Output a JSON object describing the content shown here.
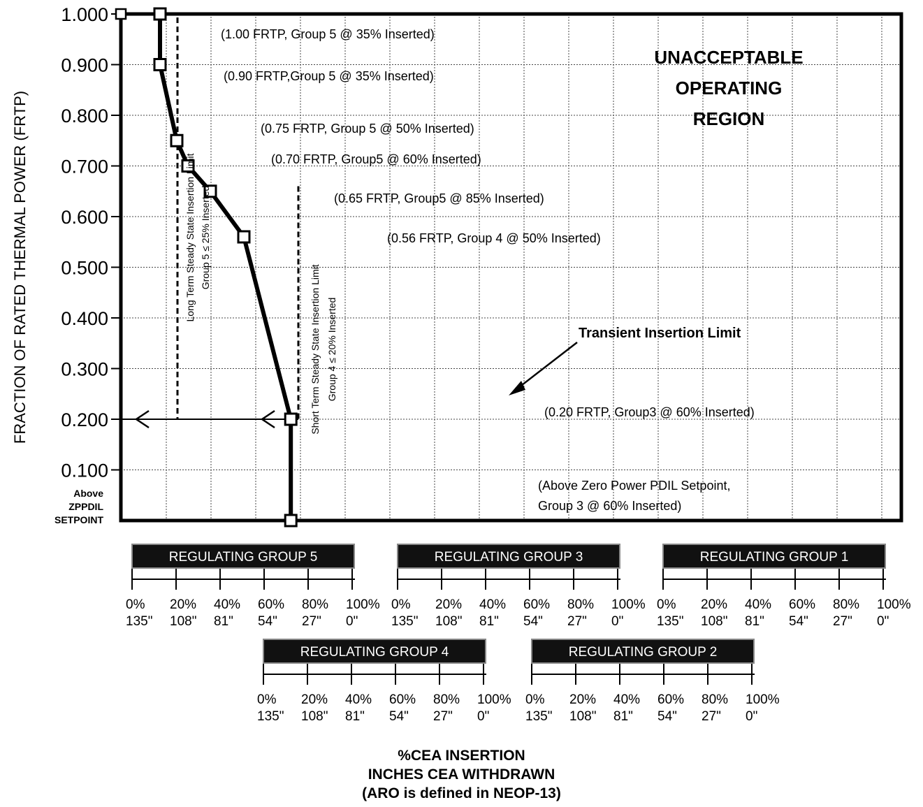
{
  "chart_data": {
    "type": "line",
    "ylabel": "FRACTION OF RATED THERMAL POWER (FRTP)",
    "ylim": [
      0,
      1.0
    ],
    "yticks": [
      "1.000",
      "0.900",
      "0.800",
      "0.700",
      "0.600",
      "0.500",
      "0.400",
      "0.300",
      "0.200",
      "0.100"
    ],
    "ytick_values": [
      1.0,
      0.9,
      0.8,
      0.7,
      0.6,
      0.5,
      0.4,
      0.3,
      0.2,
      0.1
    ],
    "y_bottom_label": [
      "Above",
      "ZPPDIL",
      "SETPOINT"
    ],
    "xlim": [
      0,
      300
    ],
    "x_unit": "% insertion, Regulating Groups 5-1 overlapped",
    "series": [
      {
        "name": "Transient Insertion Limit",
        "x": [
          17.5,
          17.5,
          25,
          30,
          40,
          55,
          76,
          76
        ],
        "y": [
          1.0,
          0.9,
          0.75,
          0.7,
          0.65,
          0.56,
          0.2,
          0.0
        ]
      }
    ],
    "annotations": [
      "(1.00 FRTP, Group 5 @ 35% Inserted)",
      "(0.90 FRTP,Group 5 @ 35% Inserted)",
      "(0.75 FRTP, Group 5 @ 50% Inserted)",
      "(0.70 FRTP, Group5 @ 60% Inserted)",
      "(0.65 FRTP, Group5 @ 85% Inserted)",
      "(0.56 FRTP, Group 4 @ 50% Inserted)",
      "(0.20 FRTP, Group3 @ 60% Inserted)"
    ],
    "bottom_annotation": [
      "(Above Zero Power PDIL Setpoint,",
      "Group 3 @ 60% Inserted)"
    ],
    "region_label": [
      "UNACCEPTABLE",
      "OPERATING",
      "REGION"
    ],
    "limit_label": "Transient Insertion Limit",
    "long_term_label": [
      "Long Term Steady State Insertion Limit",
      "Group 5 ≤ 25% Inserted"
    ],
    "short_term_label": [
      "Short Term Steady State Insertion Limit",
      "Group 4 ≤ 20% Inserted"
    ],
    "groups_row1": [
      "REGULATING GROUP 5",
      "REGULATING GROUP 3",
      "REGULATING GROUP 1"
    ],
    "groups_row2": [
      "REGULATING GROUP 4",
      "REGULATING GROUP 2"
    ],
    "pct_labels": [
      "0%",
      "20%",
      "40%",
      "60%",
      "80%",
      "100%"
    ],
    "inch_labels": [
      "135\"",
      "108\"",
      "81\"",
      "54\"",
      "27\"",
      "0\""
    ],
    "xtitle": [
      "%CEA INSERTION",
      "INCHES CEA WITHDRAWN",
      "(ARO is defined in NEOP-13)"
    ]
  }
}
